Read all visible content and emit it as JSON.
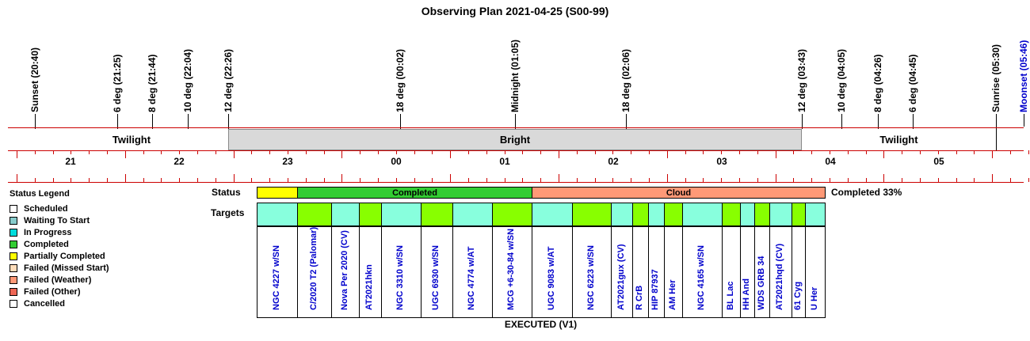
{
  "title": "Observing Plan 2021-04-25 (S00-99)",
  "colors": {
    "axis_red": "#cc0000",
    "twilight": "#ffffff",
    "bright": "#d9d9d9",
    "moon_blue": "#0000cc",
    "completed_green": "#33cc33",
    "partial_yellow": "#ffff00",
    "cloud_orange": "#ff9977",
    "target_waiting": "#88ffdd",
    "target_completed": "#88ff00",
    "target_name_blue": "#0000cc"
  },
  "events": [
    {
      "label": "Sunset (20:40)",
      "color": "#000000"
    },
    {
      "label": "6 deg (21:25)",
      "color": "#000000"
    },
    {
      "label": "8 deg (21:44)",
      "color": "#000000"
    },
    {
      "label": "10 deg (22:04)",
      "color": "#000000"
    },
    {
      "label": "12 deg (22:26)",
      "color": "#000000"
    },
    {
      "label": "18 deg (00:02)",
      "color": "#000000"
    },
    {
      "label": "Midnight (01:05)",
      "color": "#000000"
    },
    {
      "label": "18 deg (02:06)",
      "color": "#000000"
    },
    {
      "label": "12 deg (03:43)",
      "color": "#000000"
    },
    {
      "label": "10 deg (04:05)",
      "color": "#000000"
    },
    {
      "label": "8 deg (04:26)",
      "color": "#000000"
    },
    {
      "label": "6 deg (04:45)",
      "color": "#000000"
    },
    {
      "label": "Sunrise (05:30)",
      "color": "#000000"
    },
    {
      "label": "Moonset (05:46)",
      "color": "#0000cc"
    }
  ],
  "periods": [
    {
      "label": "Twilight",
      "kind": "twilight"
    },
    {
      "label": "Bright",
      "kind": "bright"
    },
    {
      "label": "Twilight",
      "kind": "twilight"
    }
  ],
  "hours": [
    "21",
    "22",
    "23",
    "00",
    "01",
    "02",
    "03",
    "04",
    "05"
  ],
  "legend": {
    "title": "Status Legend",
    "items": [
      {
        "label": "Scheduled",
        "color": "#ffffff"
      },
      {
        "label": "Waiting To Start",
        "color": "#88cccc"
      },
      {
        "label": "In Progress",
        "color": "#00dddd"
      },
      {
        "label": "Completed",
        "color": "#33cc33"
      },
      {
        "label": "Partially Completed",
        "color": "#ffff00"
      },
      {
        "label": "Failed (Missed Start)",
        "color": "#ffddbb"
      },
      {
        "label": "Failed (Weather)",
        "color": "#ff9977"
      },
      {
        "label": "Failed (Other)",
        "color": "#ee6655"
      },
      {
        "label": "Cancelled",
        "color": "#ffffff"
      }
    ]
  },
  "status_row": {
    "label": "Status",
    "summary": "Completed 33%",
    "segments": [
      {
        "label": "",
        "color": "#ffff00"
      },
      {
        "label": "Completed",
        "color": "#33cc33"
      },
      {
        "label": "Cloud",
        "color": "#ff9977"
      }
    ]
  },
  "targets_row": {
    "label": "Targets",
    "footer": "EXECUTED (V1)",
    "items": [
      {
        "name": "NGC 4227 w/SN",
        "state": "waiting"
      },
      {
        "name": "C/2020 T2 (Palomar)",
        "state": "completed"
      },
      {
        "name": "Nova Per 2020 (CV)",
        "state": "waiting"
      },
      {
        "name": "AT2021hkn",
        "state": "completed"
      },
      {
        "name": "NGC 3310 w/SN",
        "state": "waiting"
      },
      {
        "name": "UGC 6930 w/SN",
        "state": "completed"
      },
      {
        "name": "NGC 4774 w/AT",
        "state": "waiting"
      },
      {
        "name": "MCG +6-30-84 w/SN",
        "state": "completed"
      },
      {
        "name": "UGC 9083 w/AT",
        "state": "waiting"
      },
      {
        "name": "NGC 6223 w/SN",
        "state": "completed"
      },
      {
        "name": "AT2021gux (CV)",
        "state": "waiting"
      },
      {
        "name": "R CrB",
        "state": "completed"
      },
      {
        "name": "HIP 87937",
        "state": "waiting"
      },
      {
        "name": "AM Her",
        "state": "completed"
      },
      {
        "name": "NGC 4165 w/SN",
        "state": "waiting"
      },
      {
        "name": "BL Lac",
        "state": "completed"
      },
      {
        "name": "HH And",
        "state": "waiting"
      },
      {
        "name": "WDS GRB 34",
        "state": "completed"
      },
      {
        "name": "AT2021hqd (CV)",
        "state": "waiting"
      },
      {
        "name": "61 Cyg",
        "state": "completed"
      },
      {
        "name": "U Her",
        "state": "waiting"
      }
    ]
  }
}
